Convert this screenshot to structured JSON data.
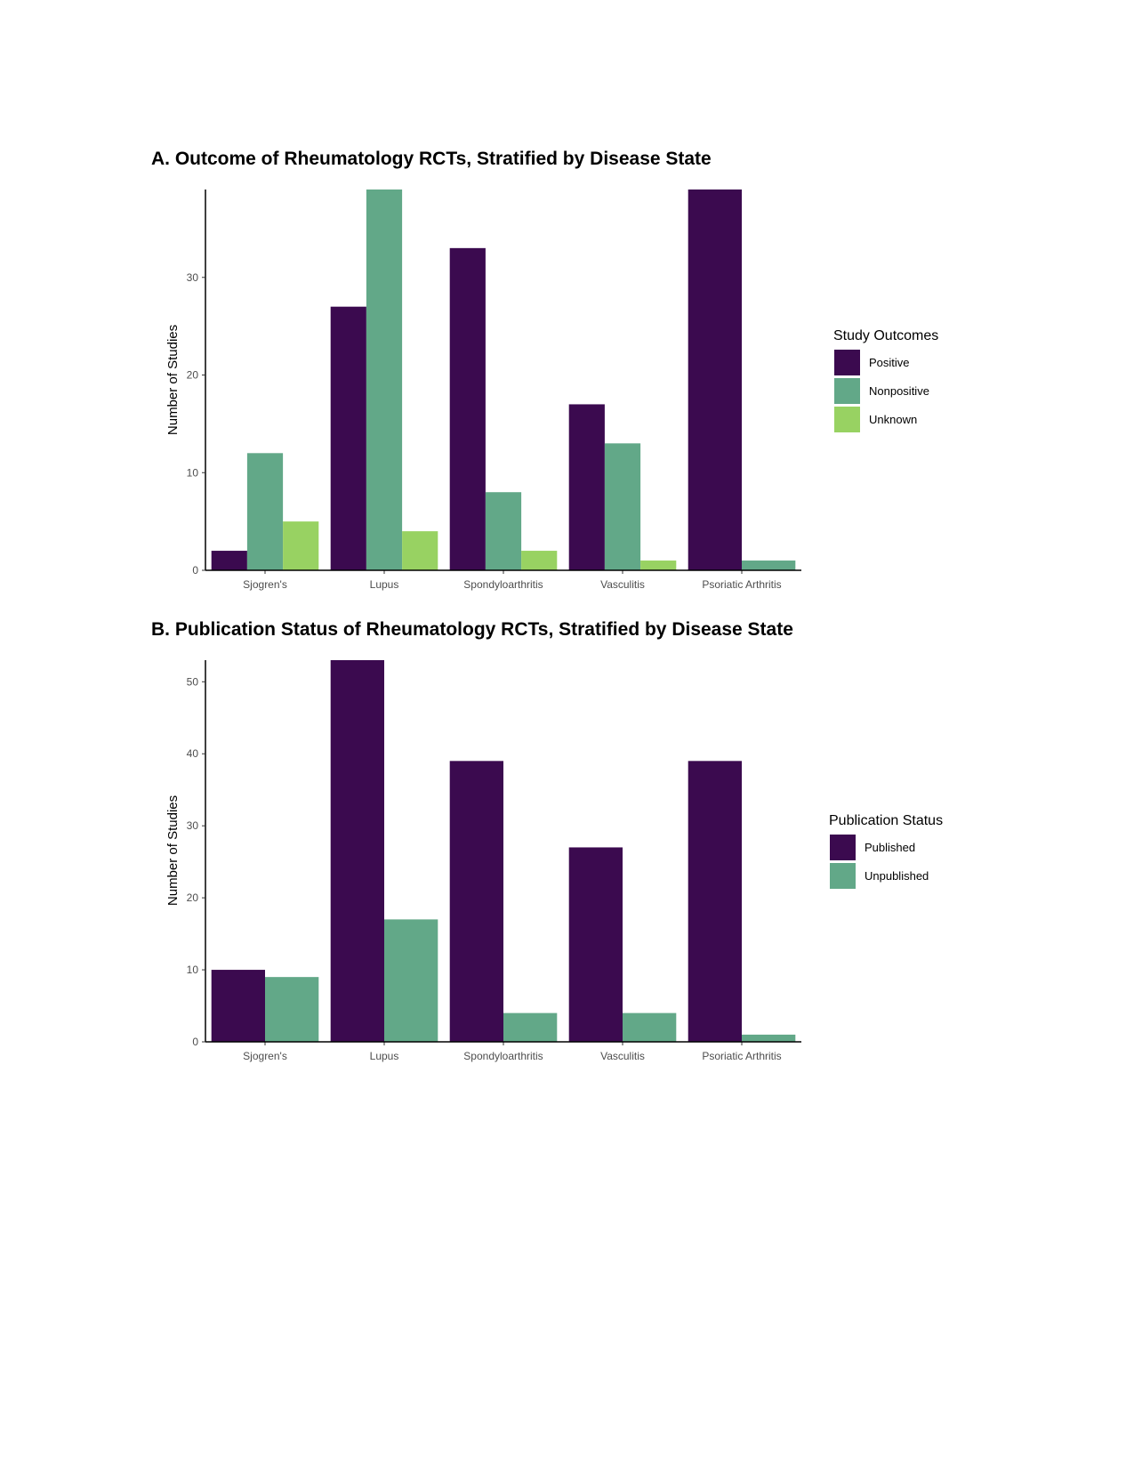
{
  "chart_data": [
    {
      "type": "bar",
      "title": "A. Outcome of Rheumatology RCTs, Stratified by Disease State",
      "xlabel": "",
      "ylabel": "Number of Studies",
      "categories": [
        "Sjogren's",
        "Lupus",
        "Spondyloarthritis",
        "Vasculitis",
        "Psoriatic Arthritis"
      ],
      "ylim": [
        0,
        39
      ],
      "yticks": [
        0,
        10,
        20,
        30
      ],
      "grid": false,
      "legend_title": "Study Outcomes",
      "legend_position": "right",
      "series": [
        {
          "name": "Positive",
          "color": "#3b0a4f",
          "values": [
            2,
            27,
            33,
            17,
            39
          ]
        },
        {
          "name": "Nonpositive",
          "color": "#62a888",
          "values": [
            12,
            39,
            8,
            13,
            1
          ]
        },
        {
          "name": "Unknown",
          "color": "#98d262",
          "values": [
            5,
            4,
            2,
            1,
            null
          ]
        }
      ]
    },
    {
      "type": "bar",
      "title": "B. Publication Status of Rheumatology RCTs, Stratified by Disease State",
      "xlabel": "",
      "ylabel": "Number of Studies",
      "categories": [
        "Sjogren's",
        "Lupus",
        "Spondyloarthritis",
        "Vasculitis",
        "Psoriatic Arthritis"
      ],
      "ylim": [
        0,
        53
      ],
      "yticks": [
        0,
        10,
        20,
        30,
        40,
        50
      ],
      "grid": false,
      "legend_title": "Publication Status",
      "legend_position": "right",
      "series": [
        {
          "name": "Published",
          "color": "#3b0a4f",
          "values": [
            10,
            53,
            39,
            27,
            39
          ]
        },
        {
          "name": "Unpublished",
          "color": "#62a888",
          "values": [
            9,
            17,
            4,
            4,
            1
          ]
        }
      ]
    }
  ]
}
